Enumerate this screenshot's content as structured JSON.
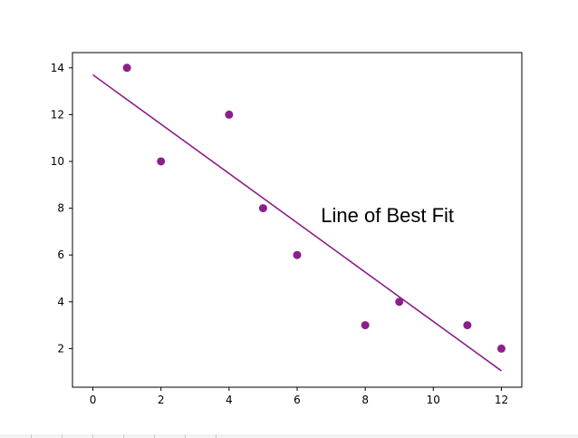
{
  "chart_data": {
    "type": "scatter",
    "title": "",
    "xlabel": "",
    "ylabel": "",
    "xlim": [
      -0.6,
      12.6
    ],
    "ylim": [
      0.35,
      14.65
    ],
    "xticks": [
      "0",
      "2",
      "4",
      "6",
      "8",
      "10",
      "12"
    ],
    "yticks": [
      "2",
      "4",
      "6",
      "8",
      "10",
      "12",
      "14"
    ],
    "grid": false,
    "marker_color": "#8b1f8b",
    "line_color": "#8b1f8b",
    "points": [
      {
        "x": 1,
        "y": 14
      },
      {
        "x": 2,
        "y": 10
      },
      {
        "x": 4,
        "y": 12
      },
      {
        "x": 5,
        "y": 8
      },
      {
        "x": 6,
        "y": 6
      },
      {
        "x": 8,
        "y": 3
      },
      {
        "x": 9,
        "y": 4
      },
      {
        "x": 11,
        "y": 3
      },
      {
        "x": 12,
        "y": 2
      }
    ],
    "fit_line": {
      "x": [
        0,
        12
      ],
      "y": [
        13.7,
        1.05
      ]
    },
    "annotation": {
      "text": "Line of Best Fit",
      "x": 6.7,
      "y": 7.4
    }
  }
}
